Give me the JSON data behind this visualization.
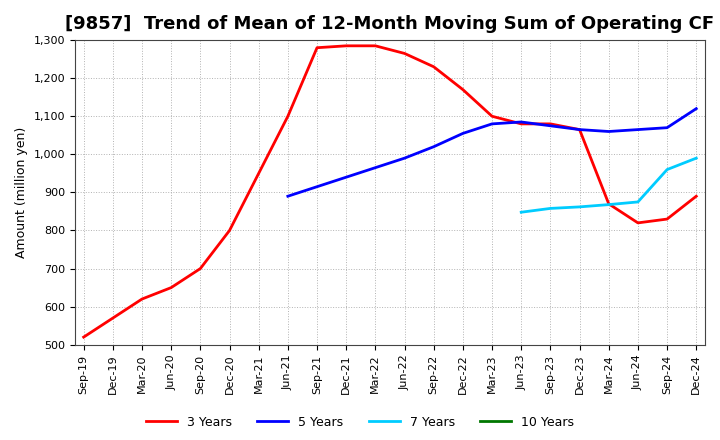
{
  "title": "[9857]  Trend of Mean of 12-Month Moving Sum of Operating CF",
  "ylabel": "Amount (million yen)",
  "ylim": [
    500,
    1300
  ],
  "yticks": [
    500,
    600,
    700,
    800,
    900,
    1000,
    1100,
    1200,
    1300
  ],
  "background_color": "#ffffff",
  "grid_color": "#aaaaaa",
  "x_labels": [
    "Sep-19",
    "Dec-19",
    "Mar-20",
    "Jun-20",
    "Sep-20",
    "Dec-20",
    "Mar-21",
    "Jun-21",
    "Sep-21",
    "Dec-21",
    "Mar-22",
    "Jun-22",
    "Sep-22",
    "Dec-22",
    "Mar-23",
    "Jun-23",
    "Sep-23",
    "Dec-23",
    "Mar-24",
    "Jun-24",
    "Sep-24",
    "Dec-24"
  ],
  "series": [
    {
      "label": "3 Years",
      "color": "#ff0000",
      "data_x": [
        0,
        1,
        2,
        3,
        4,
        5,
        6,
        7,
        8,
        9,
        10,
        11,
        12,
        13,
        14,
        15,
        16,
        17,
        18,
        19,
        20,
        21
      ],
      "data_y": [
        520,
        570,
        620,
        650,
        700,
        800,
        950,
        1100,
        1280,
        1285,
        1285,
        1265,
        1230,
        1170,
        1100,
        1080,
        1080,
        1065,
        870,
        820,
        830,
        890
      ]
    },
    {
      "label": "5 Years",
      "color": "#0000ff",
      "data_x": [
        7,
        8,
        9,
        10,
        11,
        12,
        13,
        14,
        15,
        16,
        17,
        18,
        19,
        20,
        21
      ],
      "data_y": [
        890,
        915,
        940,
        965,
        990,
        1020,
        1055,
        1080,
        1085,
        1075,
        1065,
        1060,
        1065,
        1070,
        1120
      ]
    },
    {
      "label": "7 Years",
      "color": "#00ccff",
      "data_x": [
        15,
        16,
        17,
        18,
        19,
        20,
        21
      ],
      "data_y": [
        848,
        858,
        862,
        868,
        875,
        960,
        990
      ]
    },
    {
      "label": "10 Years",
      "color": "#007700",
      "data_x": [],
      "data_y": []
    }
  ],
  "title_fontsize": 13,
  "tick_fontsize": 8,
  "label_fontsize": 9
}
